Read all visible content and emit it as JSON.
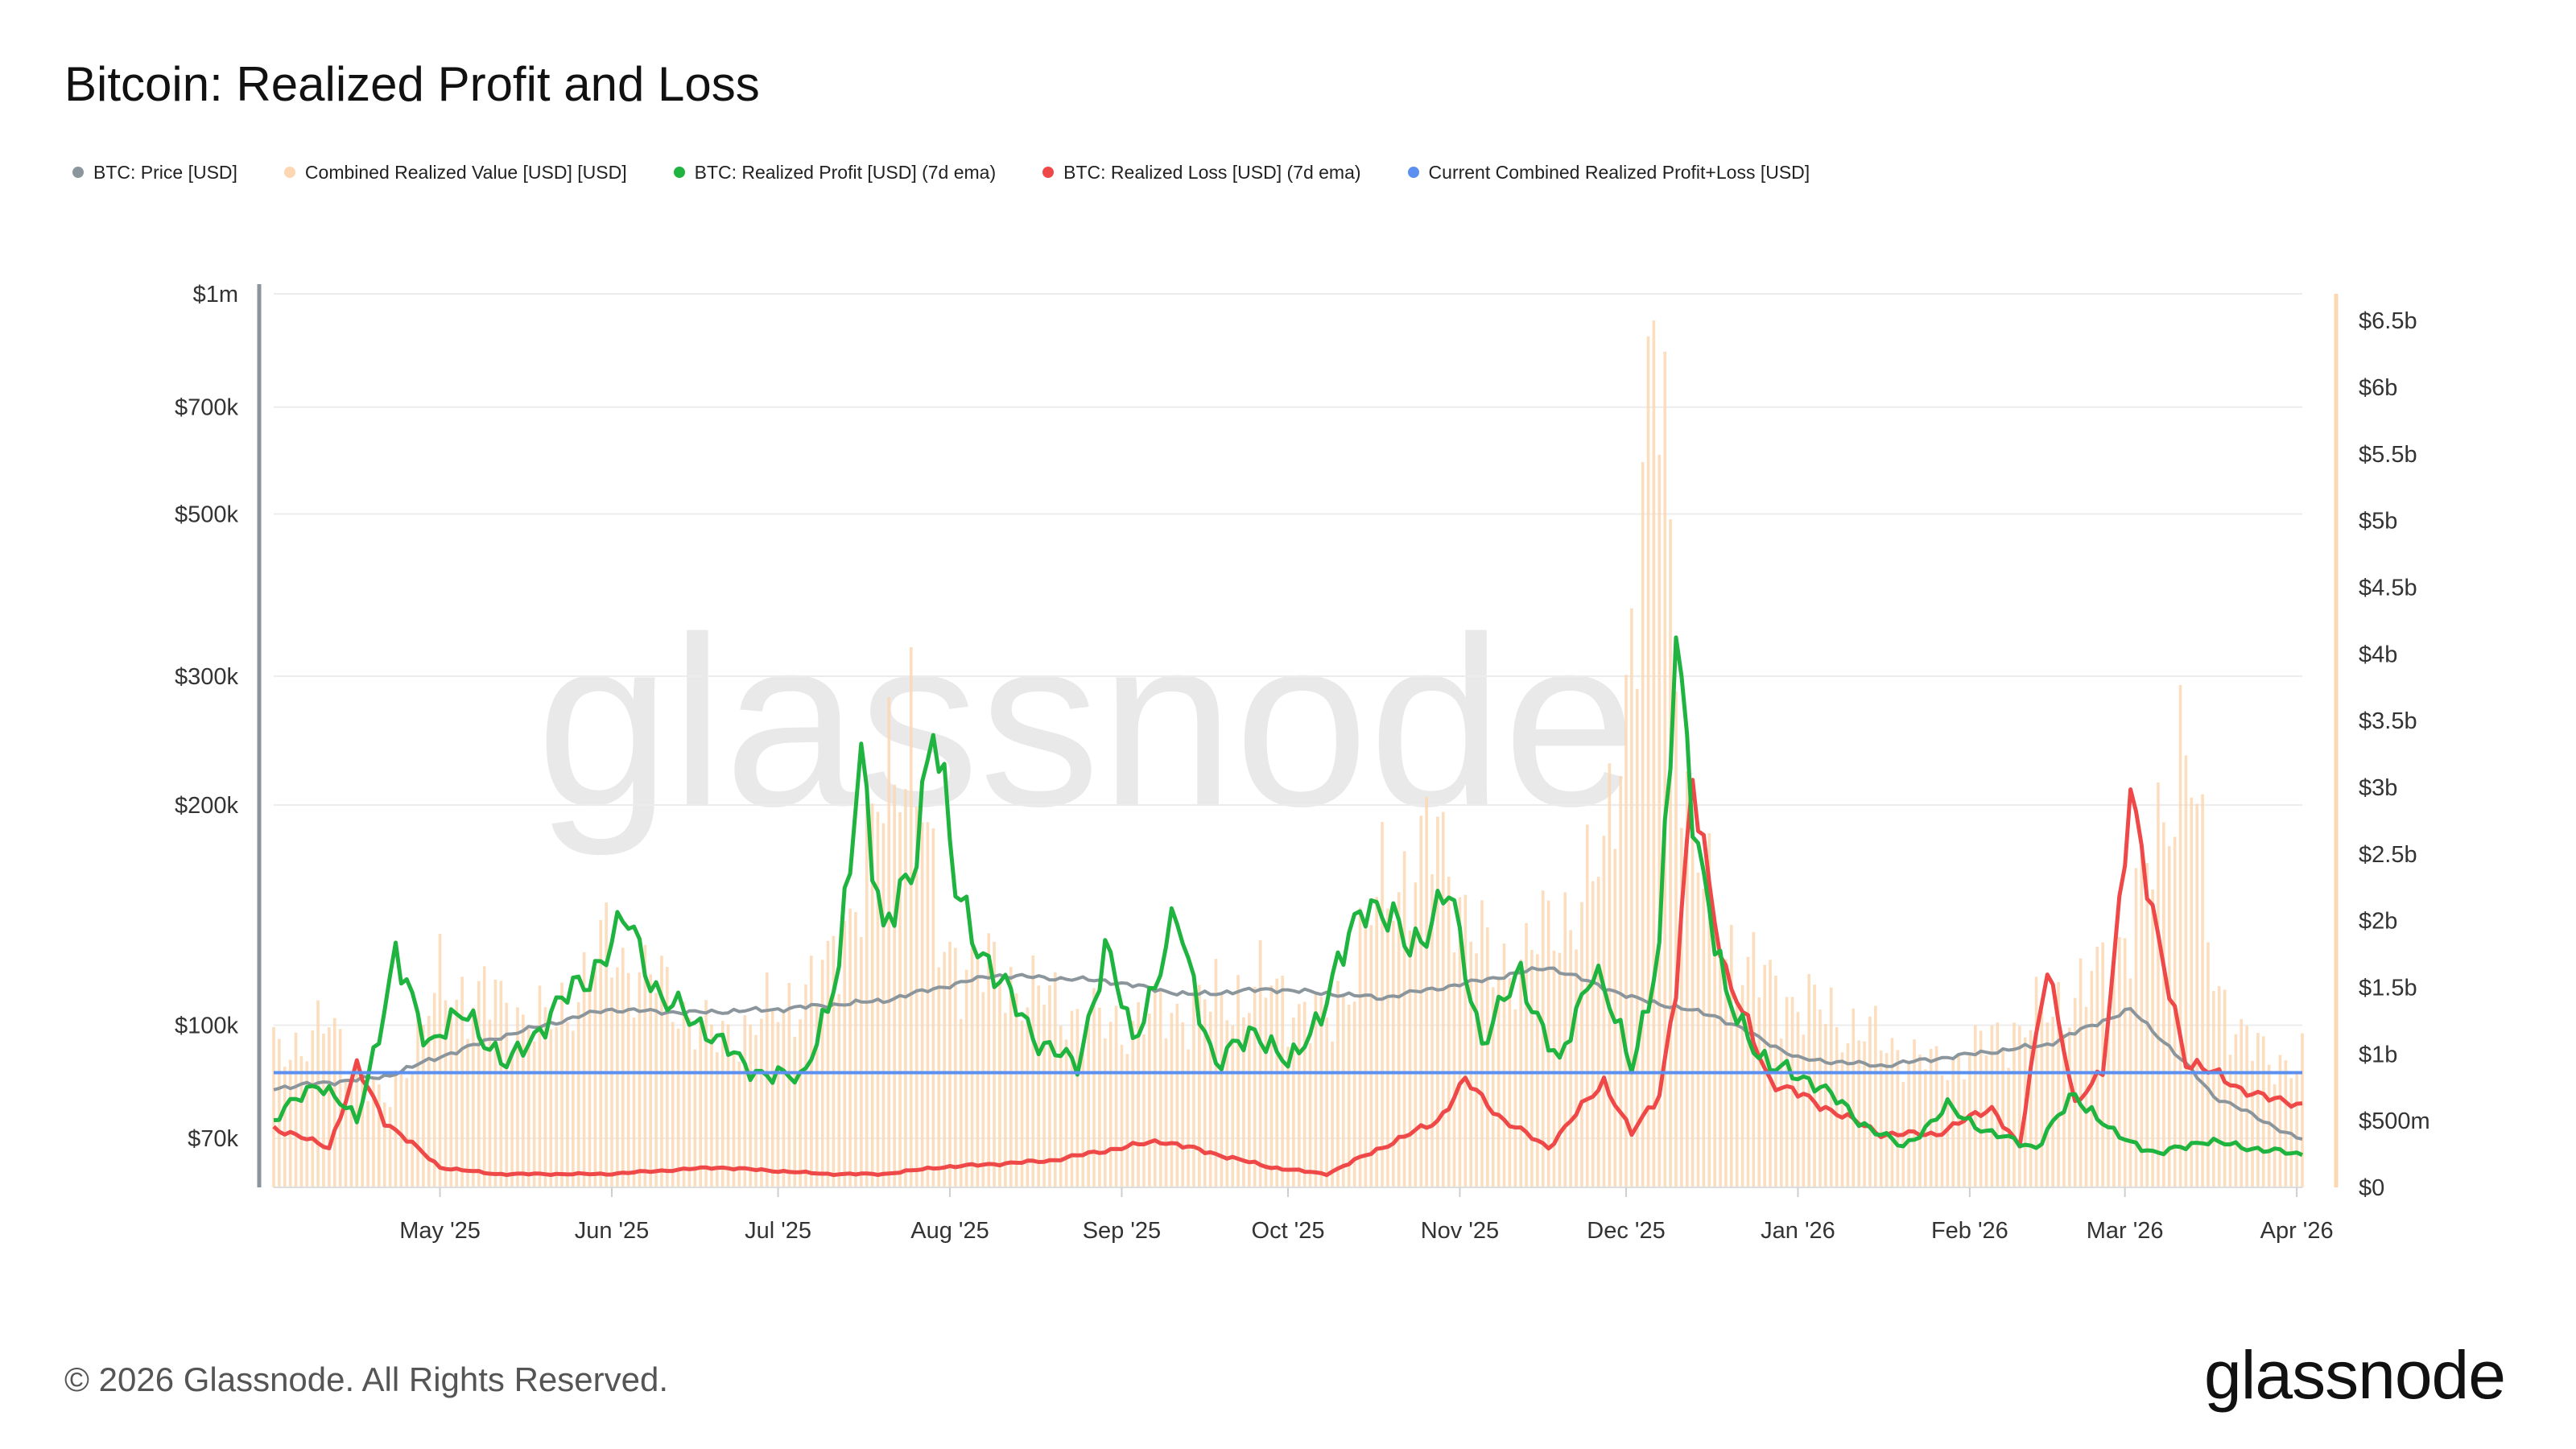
{
  "title": "Bitcoin: Realized Profit and Loss",
  "legend": [
    {
      "label": "BTC: Price [USD]",
      "color": "#8b969c"
    },
    {
      "label": "Combined Realized Value [USD] [USD]",
      "color": "#fcd7b1"
    },
    {
      "label": "BTC: Realized Profit [USD] (7d ema)",
      "color": "#1fb33f"
    },
    {
      "label": "BTC: Realized Loss [USD] (7d ema)",
      "color": "#ef4848"
    },
    {
      "label": "Current Combined Realized Profit+Loss [USD]",
      "color": "#5b8ff0"
    }
  ],
  "watermark": "glassnode",
  "footer": {
    "copyright": "© 2026 Glassnode. All Rights Reserved.",
    "logo": "glassnode"
  },
  "chart_data": {
    "type": "line",
    "title": "Bitcoin: Realized Profit and Loss",
    "x_start": "2025-04-01",
    "x_end": "2026-04-02",
    "x_tick_labels": [
      "May '25",
      "Jun '25",
      "Jul '25",
      "Aug '25",
      "Sep '25",
      "Oct '25",
      "Nov '25",
      "Dec '25",
      "Jan '26",
      "Feb '26",
      "Mar '26",
      "Apr '26"
    ],
    "y_left": {
      "scale": "log",
      "ticks": [
        70000,
        100000,
        200000,
        300000,
        500000,
        700000,
        1000000
      ],
      "tick_labels": [
        "$70k",
        "$100k",
        "$200k",
        "$300k",
        "$500k",
        "$700k",
        "$1m"
      ],
      "range": [
        60000,
        1000000
      ]
    },
    "y_right": {
      "scale": "linear",
      "ticks": [
        0,
        0.5,
        1,
        1.5,
        2,
        2.5,
        3,
        3.5,
        4,
        4.5,
        5,
        5.5,
        6,
        6.5
      ],
      "tick_labels": [
        "$0",
        "$500m",
        "$1b",
        "$1.5b",
        "$2b",
        "$2.5b",
        "$3b",
        "$3.5b",
        "$4b",
        "$4.5b",
        "$5b",
        "$5.5b",
        "$6b",
        "$6.5b"
      ],
      "range": [
        0,
        6.7
      ],
      "unit": "USD billions"
    },
    "current_combined_level": 0.86,
    "series": [
      {
        "name": "BTC: Price [USD]",
        "axis": "left",
        "color": "#8b969c",
        "x": [
          0,
          20,
          40,
          60,
          75,
          90,
          110,
          130,
          150,
          165,
          180,
          200,
          215,
          230,
          245,
          260,
          275,
          290,
          305,
          320,
          335,
          350,
          365
        ],
        "values": [
          82000,
          85000,
          96000,
          105000,
          104000,
          105000,
          108000,
          117000,
          115000,
          110000,
          112000,
          109000,
          114000,
          120000,
          109000,
          103000,
          90000,
          88000,
          91000,
          94000,
          105000,
          80000,
          70000
        ]
      },
      {
        "name": "Combined Realized Value [USD] [USD]",
        "axis": "right",
        "type": "bar",
        "color": "#fcd7b1",
        "x": [
          0,
          10,
          20,
          30,
          40,
          50,
          60,
          70,
          80,
          90,
          100,
          108,
          115,
          120,
          130,
          140,
          150,
          160,
          170,
          180,
          190,
          200,
          210,
          220,
          230,
          240,
          245,
          250,
          255,
          260,
          270,
          280,
          290,
          300,
          310,
          320,
          330,
          340,
          345,
          350,
          360,
          365
        ],
        "values": [
          1.0,
          1.2,
          0.6,
          1.5,
          1.4,
          1.2,
          1.8,
          1.5,
          1.1,
          1.3,
          1.6,
          2.6,
          3.6,
          1.8,
          1.6,
          1.4,
          1.2,
          1.3,
          1.4,
          1.5,
          1.2,
          2.2,
          2.6,
          1.6,
          1.9,
          2.4,
          4.2,
          6.3,
          2.8,
          1.9,
          1.5,
          1.3,
          1.1,
          0.9,
          1.1,
          1.3,
          1.6,
          2.5,
          3.6,
          1.5,
          0.9,
          1.0
        ]
      },
      {
        "name": "BTC: Realized Profit [USD] (7d ema)",
        "axis": "right",
        "color": "#1fb33f",
        "x": [
          0,
          8,
          15,
          22,
          28,
          35,
          42,
          50,
          57,
          64,
          70,
          78,
          85,
          95,
          102,
          106,
          110,
          115,
          119,
          123,
          130,
          138,
          145,
          150,
          155,
          163,
          170,
          177,
          183,
          190,
          197,
          205,
          212,
          218,
          225,
          232,
          238,
          245,
          250,
          253,
          257,
          262,
          270,
          278,
          286,
          294,
          302,
          310,
          318,
          325,
          332,
          340,
          348,
          356,
          365
        ],
        "values": [
          0.5,
          0.8,
          0.5,
          1.7,
          1.1,
          1.3,
          0.9,
          1.3,
          1.6,
          2.0,
          1.4,
          1.2,
          0.9,
          0.8,
          1.6,
          3.3,
          1.9,
          2.3,
          3.6,
          2.2,
          1.6,
          1.1,
          0.9,
          1.8,
          1.1,
          2.0,
          0.9,
          1.2,
          0.9,
          1.4,
          2.2,
          1.8,
          2.2,
          1.1,
          1.6,
          0.9,
          1.7,
          0.9,
          1.8,
          4.0,
          2.6,
          1.4,
          0.9,
          0.8,
          0.5,
          0.3,
          0.6,
          0.4,
          0.3,
          0.7,
          0.4,
          0.25,
          0.35,
          0.3,
          0.25
        ]
      },
      {
        "name": "BTC: Realized Loss [USD] (7d ema)",
        "axis": "right",
        "color": "#ef4848",
        "x": [
          0,
          10,
          15,
          20,
          30,
          40,
          60,
          80,
          100,
          110,
          120,
          140,
          160,
          180,
          190,
          200,
          210,
          215,
          222,
          230,
          240,
          245,
          250,
          253,
          256,
          262,
          270,
          280,
          290,
          300,
          310,
          315,
          320,
          325,
          330,
          335,
          340,
          345,
          350,
          355,
          360,
          365
        ],
        "values": [
          0.45,
          0.3,
          0.9,
          0.5,
          0.15,
          0.1,
          0.1,
          0.15,
          0.1,
          0.1,
          0.15,
          0.2,
          0.35,
          0.15,
          0.1,
          0.3,
          0.5,
          0.8,
          0.5,
          0.3,
          0.8,
          0.4,
          0.7,
          1.5,
          3.0,
          1.6,
          0.8,
          0.6,
          0.4,
          0.4,
          0.6,
          0.3,
          1.7,
          0.6,
          0.9,
          2.9,
          1.9,
          0.9,
          0.9,
          0.7,
          0.7,
          0.6
        ]
      },
      {
        "name": "Current Combined Realized Profit+Loss [USD]",
        "axis": "right",
        "type": "hline",
        "color": "#5b8ff0",
        "values": [
          0.86
        ]
      }
    ]
  }
}
